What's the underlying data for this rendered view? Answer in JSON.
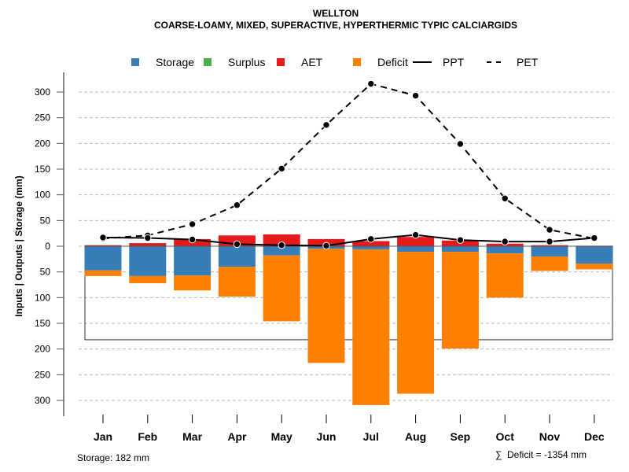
{
  "chart_data": {
    "type": "bar",
    "title": "WELLTON",
    "subtitle": "COARSE-LOAMY, MIXED, SUPERACTIVE, HYPERTHERMIC TYPIC CALCIARGIDS",
    "xlabel": "",
    "ylabel": "Inputs | Outputs | Storage    (mm)",
    "ylim": [
      -300,
      300
    ],
    "yticks": [
      300,
      250,
      200,
      150,
      100,
      50,
      0,
      -50,
      -100,
      -150,
      -200,
      -250,
      -300
    ],
    "ytick_labels": [
      "300",
      "250",
      "200",
      "150",
      "100",
      "50",
      "0",
      "50",
      "100",
      "150",
      "200",
      "250",
      "300"
    ],
    "grid": true,
    "legend_position": "top",
    "categories": [
      "Jan",
      "Feb",
      "Mar",
      "Apr",
      "May",
      "Jun",
      "Jul",
      "Aug",
      "Sep",
      "Oct",
      "Nov",
      "Dec"
    ],
    "legend": [
      {
        "name": "Storage",
        "type": "square",
        "color": "#377EB8"
      },
      {
        "name": "Surplus",
        "type": "square",
        "color": "#4DAF4A"
      },
      {
        "name": "AET",
        "type": "square",
        "color": "#E41A1C"
      },
      {
        "name": "Deficit",
        "type": "square",
        "color": "#FF7F00"
      },
      {
        "name": "PPT",
        "type": "solid-line",
        "color": "#000000"
      },
      {
        "name": "PET",
        "type": "dashed-line",
        "color": "#000000"
      }
    ],
    "series": [
      {
        "name": "AET",
        "color": "#E41A1C",
        "values": [
          2,
          6,
          14,
          21,
          23,
          14,
          10,
          18,
          11,
          5,
          2,
          1
        ]
      },
      {
        "name": "Surplus",
        "color": "#4DAF4A",
        "values": [
          0,
          0,
          0,
          0,
          0,
          0,
          0,
          0,
          0,
          0,
          0,
          0
        ]
      },
      {
        "name": "Storage",
        "color": "#377EB8",
        "values": [
          47,
          58,
          57,
          40,
          18,
          5,
          6,
          11,
          11,
          14,
          20,
          34
        ]
      },
      {
        "name": "Deficit",
        "color": "#FF7F00",
        "values": [
          11,
          14,
          29,
          58,
          128,
          222,
          303,
          276,
          188,
          86,
          28,
          11
        ]
      },
      {
        "name": "PPT",
        "color": "#000000",
        "values": [
          17,
          16,
          13,
          4,
          2,
          1,
          14,
          22,
          12,
          9,
          9,
          16
        ]
      },
      {
        "name": "PET",
        "color": "#000000",
        "values": [
          15,
          21,
          43,
          80,
          151,
          236,
          316,
          293,
          199,
          93,
          32,
          15
        ]
      }
    ],
    "storage_capacity_mm": 182,
    "annotations": {
      "storage": "Storage: 182 mm",
      "deficit_sum_symbol": "∑",
      "deficit_sum": "Deficit = -1354 mm"
    }
  }
}
